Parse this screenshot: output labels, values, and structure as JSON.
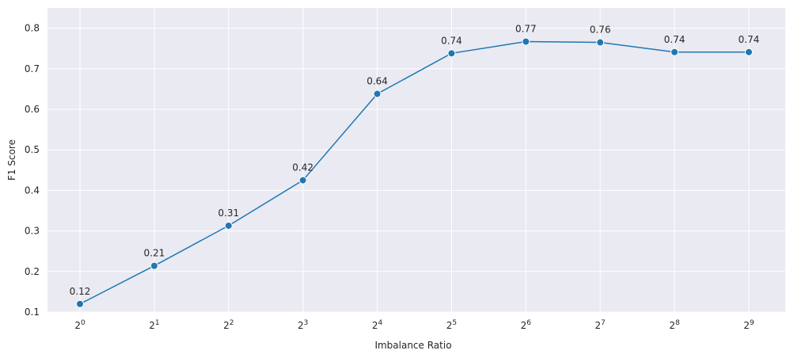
{
  "chart_data": {
    "type": "line",
    "title": "",
    "xlabel": "Imbalance Ratio",
    "ylabel": "F1 Score",
    "x_ticks": [
      {
        "base": "2",
        "exp": "0"
      },
      {
        "base": "2",
        "exp": "1"
      },
      {
        "base": "2",
        "exp": "2"
      },
      {
        "base": "2",
        "exp": "3"
      },
      {
        "base": "2",
        "exp": "4"
      },
      {
        "base": "2",
        "exp": "5"
      },
      {
        "base": "2",
        "exp": "6"
      },
      {
        "base": "2",
        "exp": "7"
      },
      {
        "base": "2",
        "exp": "8"
      },
      {
        "base": "2",
        "exp": "9"
      }
    ],
    "x": [
      1,
      2,
      4,
      8,
      16,
      32,
      64,
      128,
      256,
      512
    ],
    "x_scale": "log2",
    "series": [
      {
        "values": [
          0.12,
          0.214,
          0.313,
          0.425,
          0.638,
          0.738,
          0.767,
          0.765,
          0.741,
          0.741
        ],
        "labels": [
          "0.12",
          "0.21",
          "0.31",
          "0.42",
          "0.64",
          "0.74",
          "0.77",
          "0.76",
          "0.74",
          "0.74"
        ]
      }
    ],
    "y_ticks": [
      "0.1",
      "0.2",
      "0.3",
      "0.4",
      "0.5",
      "0.6",
      "0.7",
      "0.8"
    ],
    "ylim": [
      0.1,
      0.85
    ],
    "grid": true,
    "colors": {
      "line": "#1f77b4",
      "marker": "#1f77b4",
      "background": "#eaeaf2",
      "grid": "#ffffff"
    }
  }
}
